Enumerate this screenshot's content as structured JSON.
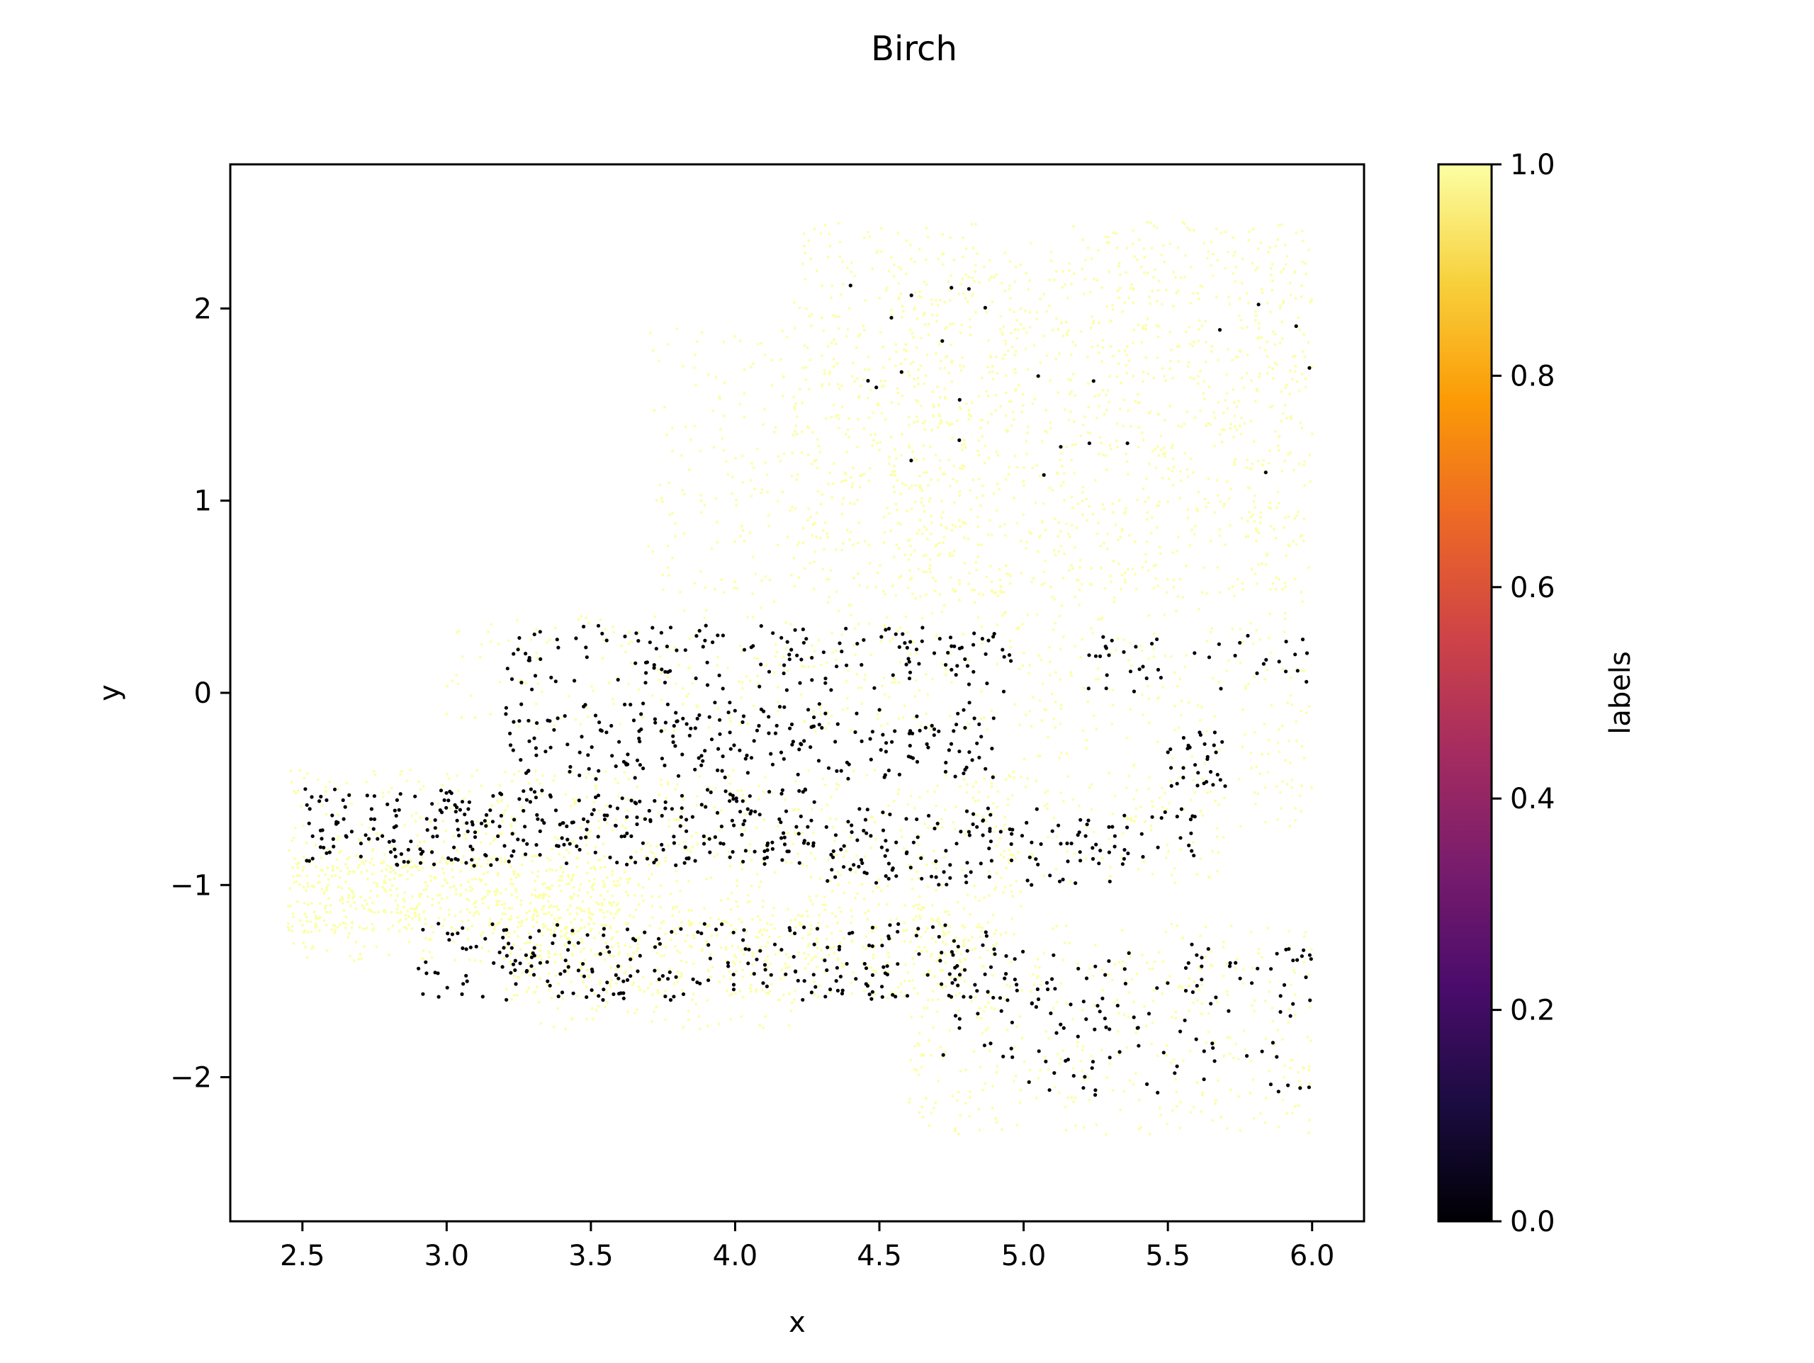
{
  "chart_data": {
    "type": "scatter",
    "title": "Birch",
    "xlabel": "x",
    "ylabel": "y",
    "xlim": [
      2.25,
      6.18
    ],
    "ylim": [
      -2.75,
      2.75
    ],
    "xticks": [
      2.5,
      3.0,
      3.5,
      4.0,
      4.5,
      5.0,
      5.5,
      6.0
    ],
    "xtick_labels": [
      "2.5",
      "3.0",
      "3.5",
      "4.0",
      "4.5",
      "5.0",
      "5.5",
      "6.0"
    ],
    "yticks": [
      -2,
      -1,
      0,
      1,
      2
    ],
    "ytick_labels": [
      "−2",
      "−1",
      "0",
      "1",
      "2"
    ],
    "grid": false,
    "legend": "none",
    "colorbar": {
      "label": "labels",
      "colormap": "inferno",
      "range": [
        0.0,
        1.0
      ],
      "ticks": [
        0.0,
        0.2,
        0.4,
        0.6,
        0.8,
        1.0
      ],
      "tick_labels": [
        "0.0",
        "0.2",
        "0.4",
        "0.6",
        "0.8",
        "1.0"
      ],
      "stops": [
        "#000004",
        "#1b0c41",
        "#4a0c6b",
        "#781c6d",
        "#a52c60",
        "#cf4446",
        "#ed6925",
        "#fb9b06",
        "#f7d13d",
        "#fcffa4"
      ]
    },
    "series": [
      {
        "label_value": 1,
        "color": "#fcffa4",
        "regions": [
          {
            "x": [
              4.2,
              6.0
            ],
            "y": [
              0.5,
              2.45
            ],
            "n": 1000
          },
          {
            "x": [
              3.7,
              4.8
            ],
            "y": [
              0.4,
              1.9
            ],
            "n": 300
          },
          {
            "x": [
              4.5,
              6.0
            ],
            "y": [
              0.3,
              2.3
            ],
            "n": 450
          },
          {
            "x": [
              3.0,
              5.0
            ],
            "y": [
              -0.2,
              0.4
            ],
            "n": 250
          },
          {
            "x": [
              5.0,
              6.0
            ],
            "y": [
              -0.7,
              0.3
            ],
            "n": 220
          },
          {
            "x": [
              2.45,
              5.0
            ],
            "y": [
              -1.4,
              -0.4
            ],
            "n": 900
          },
          {
            "x": [
              2.45,
              3.6
            ],
            "y": [
              -1.25,
              -0.85
            ],
            "n": 450
          },
          {
            "x": [
              3.2,
              4.8
            ],
            "y": [
              -1.6,
              -1.1
            ],
            "n": 350
          },
          {
            "x": [
              3.3,
              4.2
            ],
            "y": [
              -1.75,
              -1.3
            ],
            "n": 120
          },
          {
            "x": [
              4.6,
              6.0
            ],
            "y": [
              -2.3,
              -1.2
            ],
            "n": 400
          },
          {
            "x": [
              5.0,
              5.7
            ],
            "y": [
              -1.0,
              -0.5
            ],
            "n": 60
          }
        ]
      },
      {
        "label_value": 0,
        "color": "#000004",
        "regions": [
          {
            "x": [
              3.2,
              5.0
            ],
            "y": [
              0.0,
              0.35
            ],
            "n": 150
          },
          {
            "x": [
              5.2,
              6.0
            ],
            "y": [
              0.0,
              0.3
            ],
            "n": 40
          },
          {
            "x": [
              3.2,
              4.9
            ],
            "y": [
              -0.45,
              -0.05
            ],
            "n": 220
          },
          {
            "x": [
              5.5,
              5.7
            ],
            "y": [
              -0.5,
              -0.2
            ],
            "n": 30
          },
          {
            "x": [
              2.5,
              4.3
            ],
            "y": [
              -0.9,
              -0.5
            ],
            "n": 320
          },
          {
            "x": [
              4.3,
              5.3
            ],
            "y": [
              -1.0,
              -0.6
            ],
            "n": 130
          },
          {
            "x": [
              5.3,
              5.6
            ],
            "y": [
              -0.9,
              -0.6
            ],
            "n": 25
          },
          {
            "x": [
              2.9,
              4.3
            ],
            "y": [
              -1.6,
              -1.2
            ],
            "n": 170
          },
          {
            "x": [
              4.3,
              4.9
            ],
            "y": [
              -1.6,
              -1.2
            ],
            "n": 70
          },
          {
            "x": [
              4.7,
              6.0
            ],
            "y": [
              -2.1,
              -1.3
            ],
            "n": 150
          },
          {
            "x": [
              4.2,
              6.0
            ],
            "y": [
              1.0,
              2.2
            ],
            "n": 24
          }
        ]
      }
    ]
  }
}
